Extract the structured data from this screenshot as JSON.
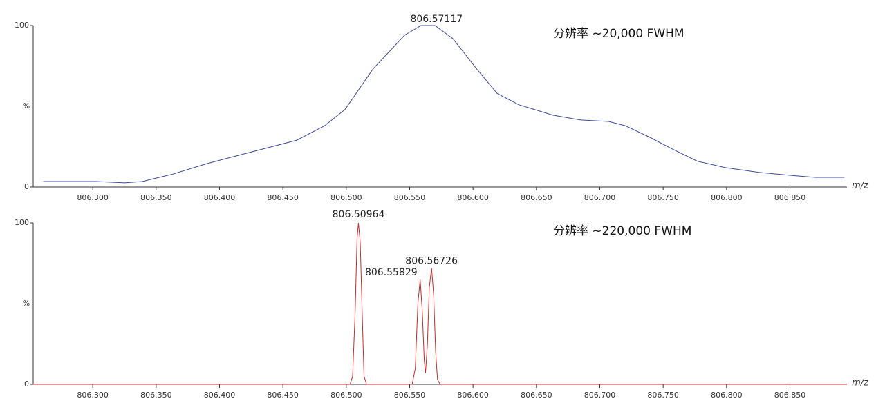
{
  "chart_data": [
    {
      "type": "line",
      "color": "#3b4a9a",
      "xlabel": "m/z",
      "ylabel": "%",
      "annotation": "分辨率 ~20,000 FWHM",
      "x": [
        806.261,
        806.303,
        806.325,
        806.339,
        806.363,
        806.39,
        806.412,
        806.434,
        806.461,
        806.483,
        806.499,
        806.521,
        806.546,
        806.559,
        806.57,
        806.584,
        806.603,
        806.619,
        806.636,
        806.663,
        806.685,
        806.707,
        806.72,
        806.739,
        806.756,
        806.777,
        806.799,
        806.826,
        806.854,
        806.87,
        806.893
      ],
      "values": [
        3.4,
        3.4,
        2.6,
        3.4,
        8,
        14.5,
        19,
        23.5,
        29,
        38,
        48,
        73,
        94,
        100,
        100,
        92,
        73,
        58,
        51,
        44.5,
        41.5,
        40.6,
        38,
        31,
        24,
        16,
        12,
        9,
        7,
        6,
        6
      ],
      "peak_labels": [
        {
          "x": 806.57117,
          "y": 100
        }
      ],
      "xlim": [
        806.253,
        806.895
      ],
      "ylim": [
        0,
        100
      ],
      "yticks": [
        0,
        100
      ],
      "xticks": [
        {
          "value": 806.3,
          "label": "806.300"
        },
        {
          "value": 806.35,
          "label": "806.350"
        },
        {
          "value": 806.4,
          "label": "806.400"
        },
        {
          "value": 806.45,
          "label": "806.450"
        },
        {
          "value": 806.5,
          "label": "806.500"
        },
        {
          "value": 806.55,
          "label": "806.550"
        },
        {
          "value": 806.6,
          "label": "806.600"
        },
        {
          "value": 806.65,
          "label": "806.650"
        },
        {
          "value": 806.7,
          "label": "806.700"
        },
        {
          "value": 806.75,
          "label": "806.750"
        },
        {
          "value": 806.8,
          "label": "806.800"
        },
        {
          "value": 806.85,
          "label": "806.850"
        }
      ]
    },
    {
      "type": "line",
      "color": "#d0282a",
      "xlabel": "m/z",
      "ylabel": "%",
      "annotation": "分辨率 ~220,000 FWHM",
      "x": [
        806.253,
        806.503,
        806.505,
        806.507,
        806.5085,
        806.5096,
        806.511,
        806.5125,
        806.514,
        806.516,
        806.552,
        806.5545,
        806.5565,
        806.5583,
        806.56,
        806.5615,
        806.5625,
        806.564,
        806.5655,
        806.5673,
        806.569,
        806.5705,
        806.572,
        806.574,
        806.895
      ],
      "values": [
        0,
        0,
        5,
        45,
        90,
        100,
        88,
        45,
        5,
        0,
        0,
        10,
        50,
        65,
        45,
        15,
        7,
        25,
        60,
        72,
        55,
        20,
        3,
        0,
        0
      ],
      "peak_labels": [
        {
          "x": 806.50964,
          "y": 100
        },
        {
          "x": 806.55829,
          "y": 65
        },
        {
          "x": 806.56726,
          "y": 72
        }
      ],
      "xlim": [
        806.253,
        806.895
      ],
      "ylim": [
        0,
        100
      ],
      "yticks": [
        0,
        100
      ],
      "xticks": [
        {
          "value": 806.3,
          "label": "806.300"
        },
        {
          "value": 806.35,
          "label": "806.350"
        },
        {
          "value": 806.4,
          "label": "806.400"
        },
        {
          "value": 806.45,
          "label": "806.450"
        },
        {
          "value": 806.5,
          "label": "806.500"
        },
        {
          "value": 806.55,
          "label": "806.550"
        },
        {
          "value": 806.6,
          "label": "806.600"
        },
        {
          "value": 806.65,
          "label": "806.650"
        },
        {
          "value": 806.7,
          "label": "806.700"
        },
        {
          "value": 806.75,
          "label": "806.750"
        },
        {
          "value": 806.8,
          "label": "806.800"
        },
        {
          "value": 806.85,
          "label": "806.850"
        }
      ]
    }
  ]
}
